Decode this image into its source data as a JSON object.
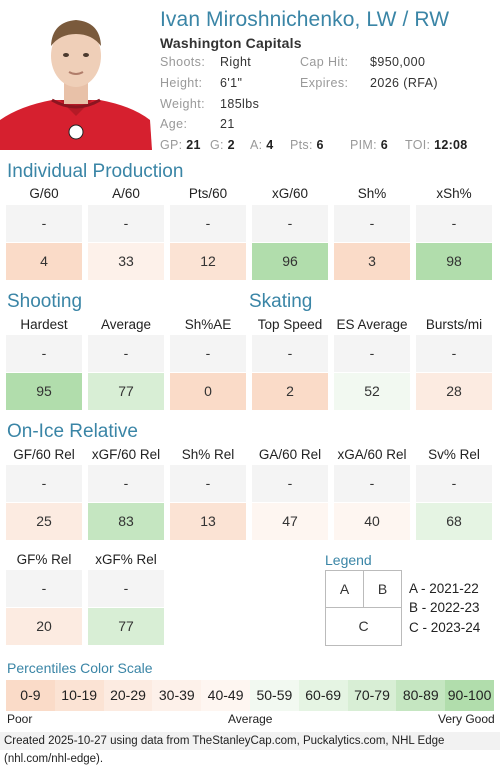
{
  "player": {
    "name": "Ivan Miroshnichenko, LW / RW",
    "team": "Washington Capitals",
    "shoots_label": "Shoots:",
    "shoots": "Right",
    "height_label": "Height:",
    "height": "6'1\"",
    "weight_label": "Weight:",
    "weight": "185lbs",
    "age_label": "Age:",
    "age": "21",
    "caphit_label": "Cap Hit:",
    "caphit": "$950,000",
    "expires_label": "Expires:",
    "expires": "2026 (RFA)"
  },
  "statline": [
    {
      "k": "GP:",
      "v": "21"
    },
    {
      "k": "G:",
      "v": "2"
    },
    {
      "k": "A:",
      "v": "4"
    },
    {
      "k": "Pts:",
      "v": "6"
    },
    {
      "k": "PIM:",
      "v": "6"
    },
    {
      "k": "TOI:",
      "v": "12:08"
    }
  ],
  "sections": {
    "production": "Individual Production",
    "shooting": "Shooting",
    "skating": "Skating",
    "onice": "On-Ice Relative"
  },
  "production": [
    {
      "label": "G/60",
      "prev": "- -",
      "pct": 4
    },
    {
      "label": "A/60",
      "prev": "- -",
      "pct": 33
    },
    {
      "label": "Pts/60",
      "prev": "- -",
      "pct": 12
    },
    {
      "label": "xG/60",
      "prev": "- -",
      "pct": 96
    },
    {
      "label": "Sh%",
      "prev": "- -",
      "pct": 3
    },
    {
      "label": "xSh%",
      "prev": "- -",
      "pct": 98
    }
  ],
  "shooting_skating": [
    {
      "label": "Hardest",
      "prev": "- -",
      "pct": 95
    },
    {
      "label": "Average",
      "prev": "- -",
      "pct": 77
    },
    {
      "label": "Sh%AE",
      "prev": "- -",
      "pct": 0
    },
    {
      "label": "Top Speed",
      "prev": "- -",
      "pct": 2
    },
    {
      "label": "ES Average",
      "prev": "- -",
      "pct": 52
    },
    {
      "label": "Bursts/mi",
      "prev": "- -",
      "pct": 28
    }
  ],
  "onice_row1": [
    {
      "label": "GF/60 Rel",
      "prev": "- -",
      "pct": 25
    },
    {
      "label": "xGF/60 Rel",
      "prev": "- -",
      "pct": 83
    },
    {
      "label": "Sh% Rel",
      "prev": "- -",
      "pct": 13
    },
    {
      "label": "GA/60 Rel",
      "prev": "- -",
      "pct": 47
    },
    {
      "label": "xGA/60 Rel",
      "prev": "- -",
      "pct": 40
    },
    {
      "label": "Sv% Rel",
      "prev": "- -",
      "pct": 68
    }
  ],
  "onice_row2": [
    {
      "label": "GF% Rel",
      "prev": "- -",
      "pct": 20
    },
    {
      "label": "xGF% Rel",
      "prev": "- -",
      "pct": 77
    }
  ],
  "legend": {
    "title": "Legend",
    "a": "A",
    "b": "B",
    "c": "C",
    "a_text": "A - 2021-22",
    "b_text": "B - 2022-23",
    "c_text": "C - 2023-24"
  },
  "scale": {
    "title": "Percentiles Color Scale",
    "bins": [
      {
        "label": "0-9",
        "color": "#fadbc8"
      },
      {
        "label": "10-19",
        "color": "#fbe3d4"
      },
      {
        "label": "20-29",
        "color": "#fcebe1"
      },
      {
        "label": "30-39",
        "color": "#fdf1ea"
      },
      {
        "label": "40-49",
        "color": "#fef6f1"
      },
      {
        "label": "50-59",
        "color": "#f2f9f1"
      },
      {
        "label": "60-69",
        "color": "#e5f4e3"
      },
      {
        "label": "70-79",
        "color": "#d8eed5"
      },
      {
        "label": "80-89",
        "color": "#c5e6c1"
      },
      {
        "label": "90-100",
        "color": "#b1ddac"
      }
    ],
    "poor": "Poor",
    "average": "Average",
    "very_good": "Very Good"
  },
  "footer": "Created 2025-10-27 using data from TheStanleyCap.com, Puckalytics.com, NHL Edge (nhl.com/nhl-edge)."
}
